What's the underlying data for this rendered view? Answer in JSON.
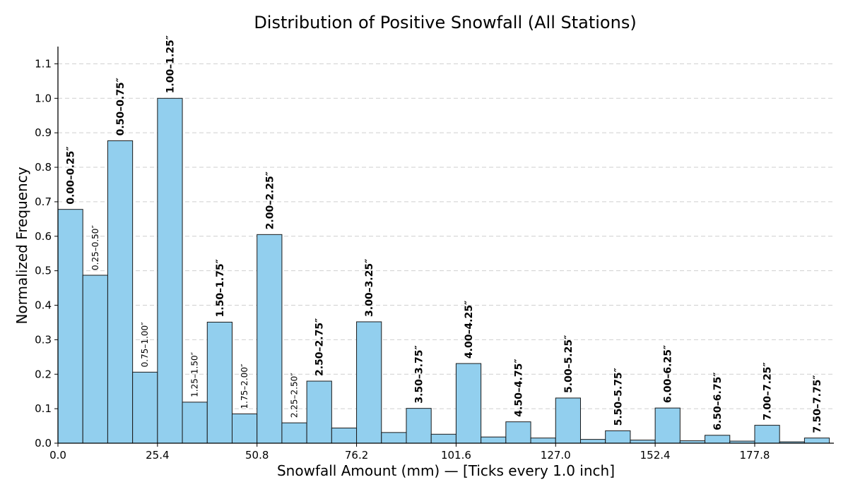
{
  "chart_data": {
    "type": "bar",
    "title": "Distribution of Positive Snowfall (All Stations)",
    "xlabel": "Snowfall Amount (mm) — [Ticks every 1.0 inch]",
    "ylabel": "Normalized Frequency",
    "bin_width_mm": 6.35,
    "xlim": [
      0,
      198.0
    ],
    "ylim": [
      0,
      1.15
    ],
    "x_ticks": [
      0.0,
      25.4,
      50.8,
      76.2,
      101.6,
      127.0,
      152.4,
      177.8
    ],
    "x_tick_labels": [
      "0.0",
      "25.4",
      "50.8",
      "76.2",
      "101.6",
      "127.0",
      "152.4",
      "177.8"
    ],
    "y_ticks": [
      0.0,
      0.1,
      0.2,
      0.3,
      0.4,
      0.5,
      0.6,
      0.7,
      0.8,
      0.9,
      1.0,
      1.1
    ],
    "y_tick_labels": [
      "0.0",
      "0.1",
      "0.2",
      "0.3",
      "0.4",
      "0.5",
      "0.6",
      "0.7",
      "0.8",
      "0.9",
      "1.0",
      "1.1"
    ],
    "grid": "horizontal dashed",
    "bins": [
      {
        "start": 0.0,
        "value": 0.678,
        "label": "0.00–0.25″",
        "bold": true
      },
      {
        "start": 6.35,
        "value": 0.487,
        "label": "0.25–0.50″",
        "bold": false
      },
      {
        "start": 12.7,
        "value": 0.877,
        "label": "0.50–0.75″",
        "bold": true
      },
      {
        "start": 19.05,
        "value": 0.206,
        "label": "0.75–1.00″",
        "bold": false
      },
      {
        "start": 25.4,
        "value": 1.0,
        "label": "1.00–1.25″",
        "bold": true
      },
      {
        "start": 31.75,
        "value": 0.119,
        "label": "1.25–1.50″",
        "bold": false
      },
      {
        "start": 38.1,
        "value": 0.351,
        "label": "1.50–1.75″",
        "bold": true
      },
      {
        "start": 44.45,
        "value": 0.085,
        "label": "1.75–2.00″",
        "bold": false
      },
      {
        "start": 50.8,
        "value": 0.605,
        "label": "2.00–2.25″",
        "bold": true
      },
      {
        "start": 57.15,
        "value": 0.059,
        "label": "2.25–2.50″",
        "bold": false
      },
      {
        "start": 63.5,
        "value": 0.18,
        "label": "2.50–2.75″",
        "bold": true
      },
      {
        "start": 69.85,
        "value": 0.044,
        "label": "",
        "bold": false
      },
      {
        "start": 76.2,
        "value": 0.352,
        "label": "3.00–3.25″",
        "bold": true
      },
      {
        "start": 82.55,
        "value": 0.031,
        "label": "",
        "bold": false
      },
      {
        "start": 88.9,
        "value": 0.101,
        "label": "3.50–3.75″",
        "bold": true
      },
      {
        "start": 95.25,
        "value": 0.026,
        "label": "",
        "bold": false
      },
      {
        "start": 101.6,
        "value": 0.231,
        "label": "4.00–4.25″",
        "bold": true
      },
      {
        "start": 107.95,
        "value": 0.018,
        "label": "",
        "bold": false
      },
      {
        "start": 114.3,
        "value": 0.062,
        "label": "4.50–4.75″",
        "bold": true
      },
      {
        "start": 120.65,
        "value": 0.015,
        "label": "",
        "bold": false
      },
      {
        "start": 127.0,
        "value": 0.131,
        "label": "5.00–5.25″",
        "bold": true
      },
      {
        "start": 133.35,
        "value": 0.011,
        "label": "",
        "bold": false
      },
      {
        "start": 139.7,
        "value": 0.036,
        "label": "5.50–5.75″",
        "bold": true
      },
      {
        "start": 146.05,
        "value": 0.009,
        "label": "",
        "bold": false
      },
      {
        "start": 152.4,
        "value": 0.102,
        "label": "6.00–6.25″",
        "bold": true
      },
      {
        "start": 158.75,
        "value": 0.007,
        "label": "",
        "bold": false
      },
      {
        "start": 165.1,
        "value": 0.023,
        "label": "6.50–6.75″",
        "bold": true
      },
      {
        "start": 171.45,
        "value": 0.006,
        "label": "",
        "bold": false
      },
      {
        "start": 177.8,
        "value": 0.052,
        "label": "7.00–7.25″",
        "bold": true
      },
      {
        "start": 184.15,
        "value": 0.004,
        "label": "",
        "bold": false
      },
      {
        "start": 190.5,
        "value": 0.015,
        "label": "7.50–7.75″",
        "bold": true
      }
    ]
  }
}
